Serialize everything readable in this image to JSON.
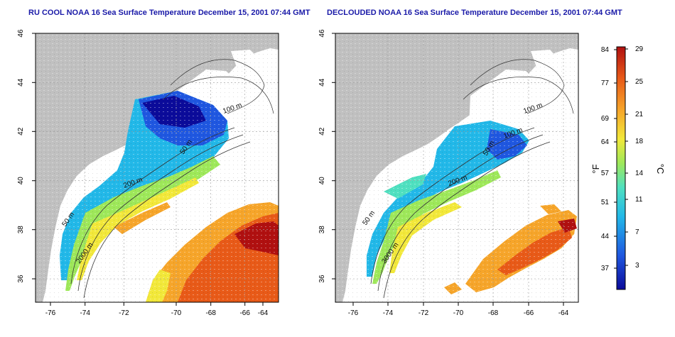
{
  "panels": [
    {
      "title": "RU COOL NOAA 16 Sea Surface Temperature December 15, 2001 07:44 GMT",
      "x_ticks": [
        "-76",
        "-74",
        "-72",
        "-70",
        "-68",
        "-66",
        "-64"
      ],
      "y_ticks": [
        "46",
        "44",
        "42",
        "40",
        "38",
        "36"
      ],
      "contour_labels": [
        "100 m",
        "50 m",
        "200 m",
        "50 m",
        "2000 m"
      ]
    },
    {
      "title": "DECLOUDED NOAA 16 Sea Surface Temperature December 15, 2001 07:44 GMT",
      "x_ticks": [
        "-76",
        "-74",
        "-72",
        "-70",
        "-68",
        "-66",
        "-64"
      ],
      "y_ticks": [
        "46",
        "44",
        "42",
        "40",
        "38",
        "36"
      ],
      "contour_labels": [
        "100 m",
        "100 m",
        "50 m",
        "200 m",
        "50 m",
        "3000 m"
      ]
    }
  ],
  "colorbar": {
    "f_label": "°F",
    "c_label": "°C",
    "f_ticks": [
      "84",
      "77",
      "69",
      "64",
      "57",
      "51",
      "44",
      "37"
    ],
    "c_ticks": [
      "29",
      "25",
      "21",
      "18",
      "14",
      "11",
      "7",
      "3"
    ]
  },
  "colors": {
    "land": "#c0c0c0",
    "title": "#1a1aa8",
    "scale": [
      "#0b0b9a",
      "#1f57e0",
      "#22b8e8",
      "#4fe0c0",
      "#9ee85a",
      "#f2e83a",
      "#f6a52a",
      "#e85a18",
      "#b01010"
    ]
  }
}
